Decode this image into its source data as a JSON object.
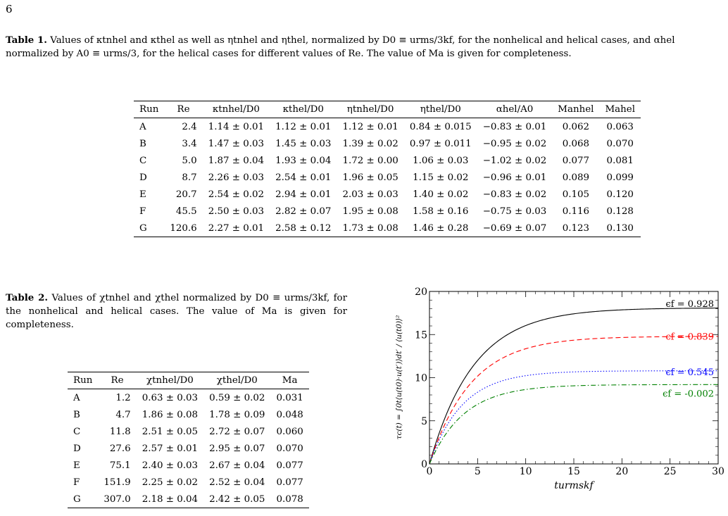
{
  "page_number": "6",
  "table1": {
    "caption_label": "Table 1.",
    "caption_text": "Values of κtnhel and κthel as well as ηtnhel and ηthel, normalized by D0 ≡ urms/3kf, for the nonhelical and helical cases, and αhel normalized by A0 ≡ urms/3, for the helical cases for different values of Re. The value of Ma is given for completeness.",
    "headers": [
      "Run",
      "Re",
      "κtnhel/D0",
      "κthel/D0",
      "ηtnhel/D0",
      "ηthel/D0",
      "αhel/A0",
      "Manhel",
      "Mahel"
    ],
    "rows": [
      [
        "A",
        "2.4",
        "1.14 ± 0.01",
        "1.12 ± 0.01",
        "1.12 ± 0.01",
        "0.84 ± 0.015",
        "−0.83 ± 0.01",
        "0.062",
        "0.063"
      ],
      [
        "B",
        "3.4",
        "1.47 ± 0.03",
        "1.45 ± 0.03",
        "1.39 ± 0.02",
        "0.97 ± 0.011",
        "−0.95 ± 0.02",
        "0.068",
        "0.070"
      ],
      [
        "C",
        "5.0",
        "1.87 ± 0.04",
        "1.93 ± 0.04",
        "1.72 ± 0.00",
        "1.06 ± 0.03",
        "−1.02 ± 0.02",
        "0.077",
        "0.081"
      ],
      [
        "D",
        "8.7",
        "2.26 ± 0.03",
        "2.54 ± 0.01",
        "1.96 ± 0.05",
        "1.15 ± 0.02",
        "−0.96 ± 0.01",
        "0.089",
        "0.099"
      ],
      [
        "E",
        "20.7",
        "2.54 ± 0.02",
        "2.94 ± 0.01",
        "2.03 ± 0.03",
        "1.40 ± 0.02",
        "−0.83 ± 0.02",
        "0.105",
        "0.120"
      ],
      [
        "F",
        "45.5",
        "2.50 ± 0.03",
        "2.82 ± 0.07",
        "1.95 ± 0.08",
        "1.58 ± 0.16",
        "−0.75 ± 0.03",
        "0.116",
        "0.128"
      ],
      [
        "G",
        "120.6",
        "2.27 ± 0.01",
        "2.58 ± 0.12",
        "1.73 ± 0.08",
        "1.46 ± 0.28",
        "−0.69 ± 0.07",
        "0.123",
        "0.130"
      ]
    ]
  },
  "table2": {
    "caption_label": "Table 2.",
    "caption_text": "Values of χtnhel and χthel normalized by D0 ≡ urms/3kf, for the nonhelical and helical cases. The value of Ma is given for completeness.",
    "headers": [
      "Run",
      "Re",
      "χtnhel/D0",
      "χthel/D0",
      "Ma"
    ],
    "rows": [
      [
        "A",
        "1.2",
        "0.63 ± 0.03",
        "0.59 ± 0.02",
        "0.031"
      ],
      [
        "B",
        "4.7",
        "1.86 ± 0.08",
        "1.78 ± 0.09",
        "0.048"
      ],
      [
        "C",
        "11.8",
        "2.51 ± 0.05",
        "2.72 ± 0.07",
        "0.060"
      ],
      [
        "D",
        "27.6",
        "2.57 ± 0.01",
        "2.95 ± 0.07",
        "0.070"
      ],
      [
        "E",
        "75.1",
        "2.40 ± 0.03",
        "2.67 ± 0.04",
        "0.077"
      ],
      [
        "F",
        "151.9",
        "2.25 ± 0.02",
        "2.52 ± 0.04",
        "0.077"
      ],
      [
        "G",
        "307.0",
        "2.18 ± 0.04",
        "2.42 ± 0.05",
        "0.078"
      ]
    ]
  },
  "chart_data": {
    "type": "line",
    "title": "",
    "xlabel": "turmskf",
    "ylabel": "τc(t) = ∫0t⟨u(t0)·u(t′)⟩dt′ / ⟨u(t0)⟩²",
    "xlim": [
      0,
      30
    ],
    "ylim": [
      0,
      20
    ],
    "xticks": [
      0,
      5,
      10,
      15,
      20,
      25,
      30
    ],
    "yticks": [
      0,
      5,
      10,
      15,
      20
    ],
    "grid": false,
    "series": [
      {
        "name": "ϵf = 0.928",
        "color": "#000000",
        "dash": "solid",
        "plateau": 18.1,
        "tau": 4.6,
        "x": [
          0,
          2,
          4,
          6,
          8,
          10,
          12,
          15,
          18,
          21,
          24,
          27,
          30
        ],
        "y": [
          0,
          6.2,
          10.7,
          13.4,
          15.2,
          16.3,
          16.9,
          17.5,
          17.8,
          17.9,
          18.0,
          18.05,
          18.1
        ]
      },
      {
        "name": "ϵf = 0.839",
        "color": "#ff0000",
        "dash": "dashed",
        "plateau": 14.8,
        "tau": 4.3,
        "x": [
          0,
          2,
          4,
          6,
          8,
          10,
          12,
          15,
          18,
          21,
          24,
          27,
          30
        ],
        "y": [
          0,
          5.4,
          8.9,
          11.1,
          12.5,
          13.4,
          13.9,
          14.4,
          14.6,
          14.7,
          14.75,
          14.78,
          14.8
        ]
      },
      {
        "name": "ϵf = 0.545",
        "color": "#0000ff",
        "dash": "dotted",
        "plateau": 10.8,
        "tau": 3.4,
        "x": [
          0,
          2,
          4,
          6,
          8,
          10,
          12,
          15,
          18,
          21,
          24,
          27,
          30
        ],
        "y": [
          0,
          4.6,
          7.2,
          8.7,
          9.6,
          10.1,
          10.4,
          10.6,
          10.7,
          10.75,
          10.78,
          10.8,
          10.8
        ]
      },
      {
        "name": "ϵf = -0.002",
        "color": "#008000",
        "dash": "dashdot",
        "plateau": 9.2,
        "tau": 3.6,
        "x": [
          0,
          2,
          4,
          6,
          8,
          10,
          12,
          15,
          18,
          21,
          24,
          27,
          30
        ],
        "y": [
          0,
          4.2,
          6.4,
          7.6,
          8.2,
          8.5,
          8.7,
          8.9,
          9.0,
          9.05,
          9.1,
          9.15,
          9.2
        ]
      }
    ]
  }
}
